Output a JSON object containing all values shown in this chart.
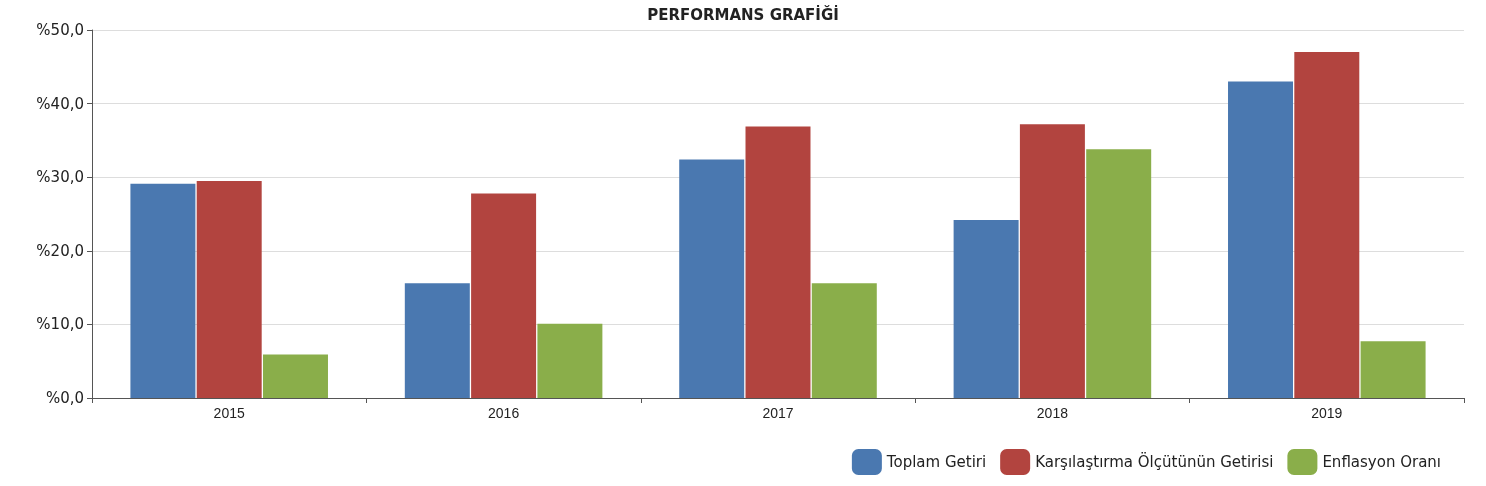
{
  "chart_data": {
    "type": "bar",
    "title": "PERFORMANS GRAFİĞİ",
    "categories": [
      "2015",
      "2016",
      "2017",
      "2018",
      "2019"
    ],
    "series": [
      {
        "name": "Toplam Getiri",
        "color": "#4a78b0",
        "values": [
          29.1,
          15.6,
          32.4,
          24.2,
          43.0
        ]
      },
      {
        "name": "Karşılaştırma Ölçütünün Getirisi",
        "color": "#b2443f",
        "values": [
          29.5,
          27.8,
          36.9,
          37.2,
          47.0
        ]
      },
      {
        "name": "Enflasyon Oranı",
        "color": "#8aae4a",
        "values": [
          5.9,
          10.1,
          15.6,
          33.8,
          7.7
        ]
      }
    ],
    "ylim": [
      0,
      50
    ],
    "yticks": [
      {
        "value": 0,
        "label": "%0,0"
      },
      {
        "value": 10,
        "label": "%10,0"
      },
      {
        "value": 20,
        "label": "%20,0"
      },
      {
        "value": 30,
        "label": "%30,0"
      },
      {
        "value": 40,
        "label": "%40,0"
      },
      {
        "value": 50,
        "label": "%50,0"
      }
    ],
    "grid": "y",
    "legend": "bottom right"
  }
}
